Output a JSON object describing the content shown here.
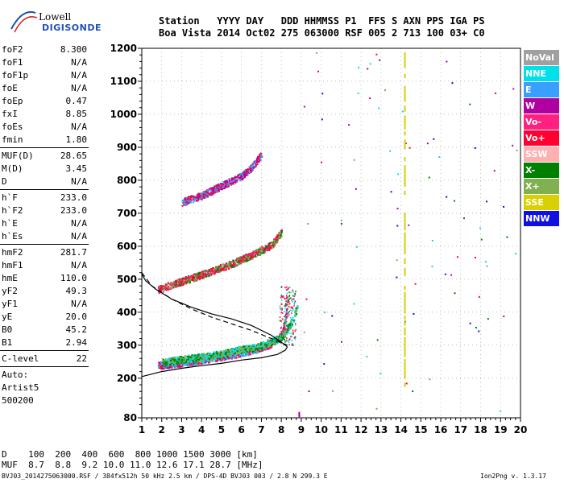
{
  "logo": {
    "line1": "Lowell",
    "line2": "DIGISONDE"
  },
  "header": {
    "row1": "Station   YYYY DAY   DDD HHMMSS P1  FFS S AXN PPS IGA PS",
    "row2": "Boa Vista 2014 Oct02 275 063000 RSF 005 2 713 100 03+ C0"
  },
  "params": {
    "group1": [
      {
        "name": "foF2",
        "value": "8.300"
      },
      {
        "name": "foF1",
        "value": "N/A"
      },
      {
        "name": "foF1p",
        "value": "N/A"
      },
      {
        "name": "foE",
        "value": "N/A"
      },
      {
        "name": "foEp",
        "value": "0.47"
      },
      {
        "name": "fxI",
        "value": "8.85"
      },
      {
        "name": "foEs",
        "value": "N/A"
      },
      {
        "name": "fmin",
        "value": "1.80"
      }
    ],
    "group2": [
      {
        "name": "MUF(D)",
        "value": "28.65"
      },
      {
        "name": "M(D)",
        "value": "3.45"
      },
      {
        "name": "D",
        "value": "N/A"
      }
    ],
    "group3": [
      {
        "name": "h`F",
        "value": "233.0"
      },
      {
        "name": "h`F2",
        "value": "233.0"
      },
      {
        "name": "h`E",
        "value": "N/A"
      },
      {
        "name": "h`Es",
        "value": "N/A"
      }
    ],
    "group4": [
      {
        "name": "hmF2",
        "value": "281.7"
      },
      {
        "name": "hmF1",
        "value": "N/A"
      },
      {
        "name": "hmE",
        "value": "110.0"
      },
      {
        "name": "yF2",
        "value": "49.3"
      },
      {
        "name": "yF1",
        "value": "N/A"
      },
      {
        "name": "yE",
        "value": "20.0"
      },
      {
        "name": "B0",
        "value": "45.2"
      },
      {
        "name": "B1",
        "value": "2.94"
      }
    ],
    "clevel": {
      "name": "C-level",
      "value": "22"
    },
    "auto": [
      "Auto:",
      "Artist5",
      "500200"
    ]
  },
  "legend": [
    {
      "label": "NoVal",
      "color": "#a0a0a0"
    },
    {
      "label": "NNE",
      "color": "#00e0e8"
    },
    {
      "label": "E",
      "color": "#3aa0ff"
    },
    {
      "label": "W",
      "color": "#b000a0"
    },
    {
      "label": "Vo-",
      "color": "#ff2080"
    },
    {
      "label": "Vo+",
      "color": "#ff0030"
    },
    {
      "label": "SSW",
      "color": "#ffb0b0"
    },
    {
      "label": "X-",
      "color": "#008000"
    },
    {
      "label": "X+",
      "color": "#80b050"
    },
    {
      "label": "SSE",
      "color": "#d8d000"
    },
    {
      "label": "NNW",
      "color": "#1010e0"
    }
  ],
  "table": {
    "row1": "D    100  200  400  600  800 1000 1500 3000 [km]",
    "row2": "MUF  8.7  8.8  9.2 10.0 11.0 12.6 17.1 28.7 [MHz]"
  },
  "footer": {
    "left": "BVJ03_2014275063000.RSF / 384fx512h 50 kHz 2.5 km / DPS-4D BVJ03 003 / 2.8 N 299.3 E",
    "right": "Ion2Png v. 1.3.17"
  },
  "chart_data": {
    "type": "scatter",
    "xlim": [
      1,
      20
    ],
    "ylim": [
      80,
      1200
    ],
    "x_ticks": [
      "1",
      "2",
      "3",
      "4",
      "5",
      "6",
      "7",
      "8",
      "9",
      "10",
      "11",
      "12",
      "13",
      "14",
      "15",
      "16",
      "17",
      "18",
      "19",
      "20"
    ],
    "y_ticks": [
      "80",
      "200",
      "300",
      "400",
      "500",
      "600",
      "700",
      "800",
      "900",
      "1000",
      "1100",
      "1200"
    ],
    "grid": true,
    "series": [
      {
        "name": "O-trace F2 first hop",
        "x": [
          1.8,
          2.5,
          3.5,
          4.5,
          5.5,
          6.5,
          7.5,
          8.0,
          8.2,
          8.3
        ],
        "y": [
          240,
          245,
          252,
          262,
          272,
          285,
          305,
          330,
          380,
          450
        ],
        "colors": [
          "#ff0030",
          "#ff2080",
          "#3aa0ff",
          "#00e0e8",
          "#b000a0"
        ]
      },
      {
        "name": "X-trace F2 first hop",
        "x": [
          2.0,
          3.0,
          4.0,
          5.0,
          6.0,
          7.0,
          8.0,
          8.5,
          8.8
        ],
        "y": [
          250,
          258,
          265,
          275,
          288,
          300,
          325,
          370,
          420
        ],
        "colors": [
          "#80b050",
          "#008000",
          "#00e0e8"
        ]
      },
      {
        "name": "Second hop",
        "x": [
          1.8,
          2.5,
          3.5,
          4.5,
          5.5,
          6.5,
          7.5,
          8.0
        ],
        "y": [
          470,
          485,
          505,
          525,
          548,
          575,
          605,
          645
        ],
        "colors": [
          "#ff0030",
          "#ff2080",
          "#008000",
          "#80b050"
        ]
      },
      {
        "name": "Third hop",
        "x": [
          3.0,
          4.0,
          5.0,
          6.0,
          6.5,
          7.0
        ],
        "y": [
          735,
          755,
          785,
          815,
          840,
          880
        ],
        "colors": [
          "#ff0030",
          "#b000a0",
          "#3aa0ff"
        ]
      }
    ],
    "profile_solid": {
      "x": [
        1.0,
        2.0,
        3.0,
        4.0,
        5.0,
        6.0,
        7.0,
        7.8,
        8.2,
        8.3
      ],
      "y": [
        205,
        220,
        230,
        238,
        245,
        255,
        262,
        272,
        285,
        295
      ]
    },
    "profile_upper": {
      "x": [
        8.3,
        8.1,
        7.5,
        6.5,
        5.5,
        4.5,
        3.5,
        2.5,
        1.7,
        1.2,
        1.0
      ],
      "y": [
        295,
        305,
        330,
        360,
        380,
        395,
        415,
        440,
        470,
        495,
        515
      ]
    },
    "profile_dashed": {
      "x": [
        1.0,
        1.5,
        2.5,
        3.5,
        4.5,
        5.5,
        6.5,
        7.5,
        8.3
      ],
      "y": [
        520,
        480,
        440,
        410,
        385,
        365,
        345,
        320,
        300
      ]
    },
    "interference": [
      {
        "x": 14.2,
        "y_from": 180,
        "y_to": 1200,
        "color": "#d8d000"
      },
      {
        "x": 8.9,
        "y_from": 80,
        "y_to": 100,
        "color": "#b000a0"
      }
    ]
  }
}
